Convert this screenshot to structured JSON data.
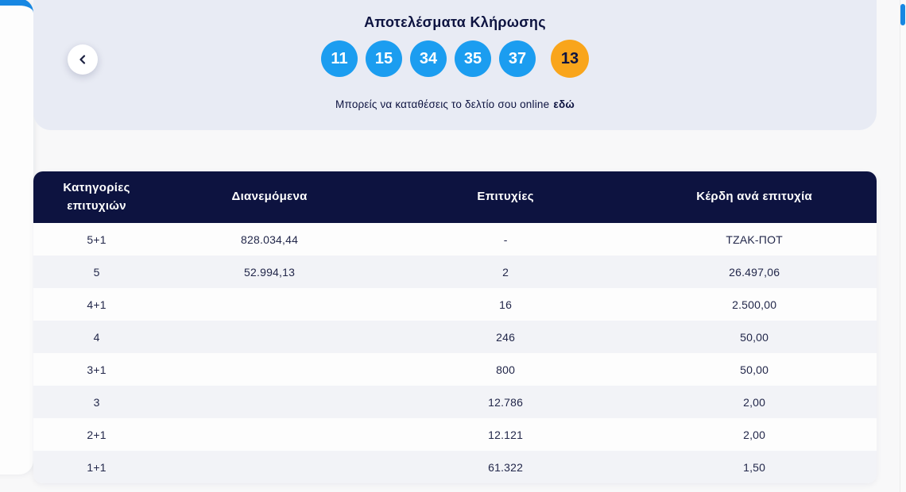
{
  "hero": {
    "title": "Αποτελέσματα Κλήρωσης",
    "deposit_text": "Μπορείς να καταθέσεις το δελτίο σου online",
    "deposit_link_label": "εδώ"
  },
  "draw": {
    "numbers": [
      "11",
      "15",
      "34",
      "35",
      "37"
    ],
    "joker": "13"
  },
  "table": {
    "headers": [
      "Κατηγορίες επιτυχιών",
      "Διανεμόμενα",
      "Επιτυχίες",
      "Κέρδη ανά επιτυχία"
    ],
    "rows": [
      {
        "category": "5+1",
        "distributed": "828.034,44",
        "winners": "-",
        "prize": "ΤΖΑΚ-ΠΟΤ"
      },
      {
        "category": "5",
        "distributed": "52.994,13",
        "winners": "2",
        "prize": "26.497,06"
      },
      {
        "category": "4+1",
        "distributed": "",
        "winners": "16",
        "prize": "2.500,00"
      },
      {
        "category": "4",
        "distributed": "",
        "winners": "246",
        "prize": "50,00"
      },
      {
        "category": "3+1",
        "distributed": "",
        "winners": "800",
        "prize": "50,00"
      },
      {
        "category": "3",
        "distributed": "",
        "winners": "12.786",
        "prize": "2,00"
      },
      {
        "category": "2+1",
        "distributed": "",
        "winners": "12.121",
        "prize": "2,00"
      },
      {
        "category": "1+1",
        "distributed": "",
        "winners": "61.322",
        "prize": "1,50"
      }
    ]
  },
  "colors": {
    "ball_blue": "#1b9df0",
    "accent_blue": "#1787e2",
    "joker_orange": "#f9a51b",
    "header_navy": "#0d1340",
    "panel_bg": "#e8ebf4",
    "stripe_bg": "#f2f3f7"
  }
}
